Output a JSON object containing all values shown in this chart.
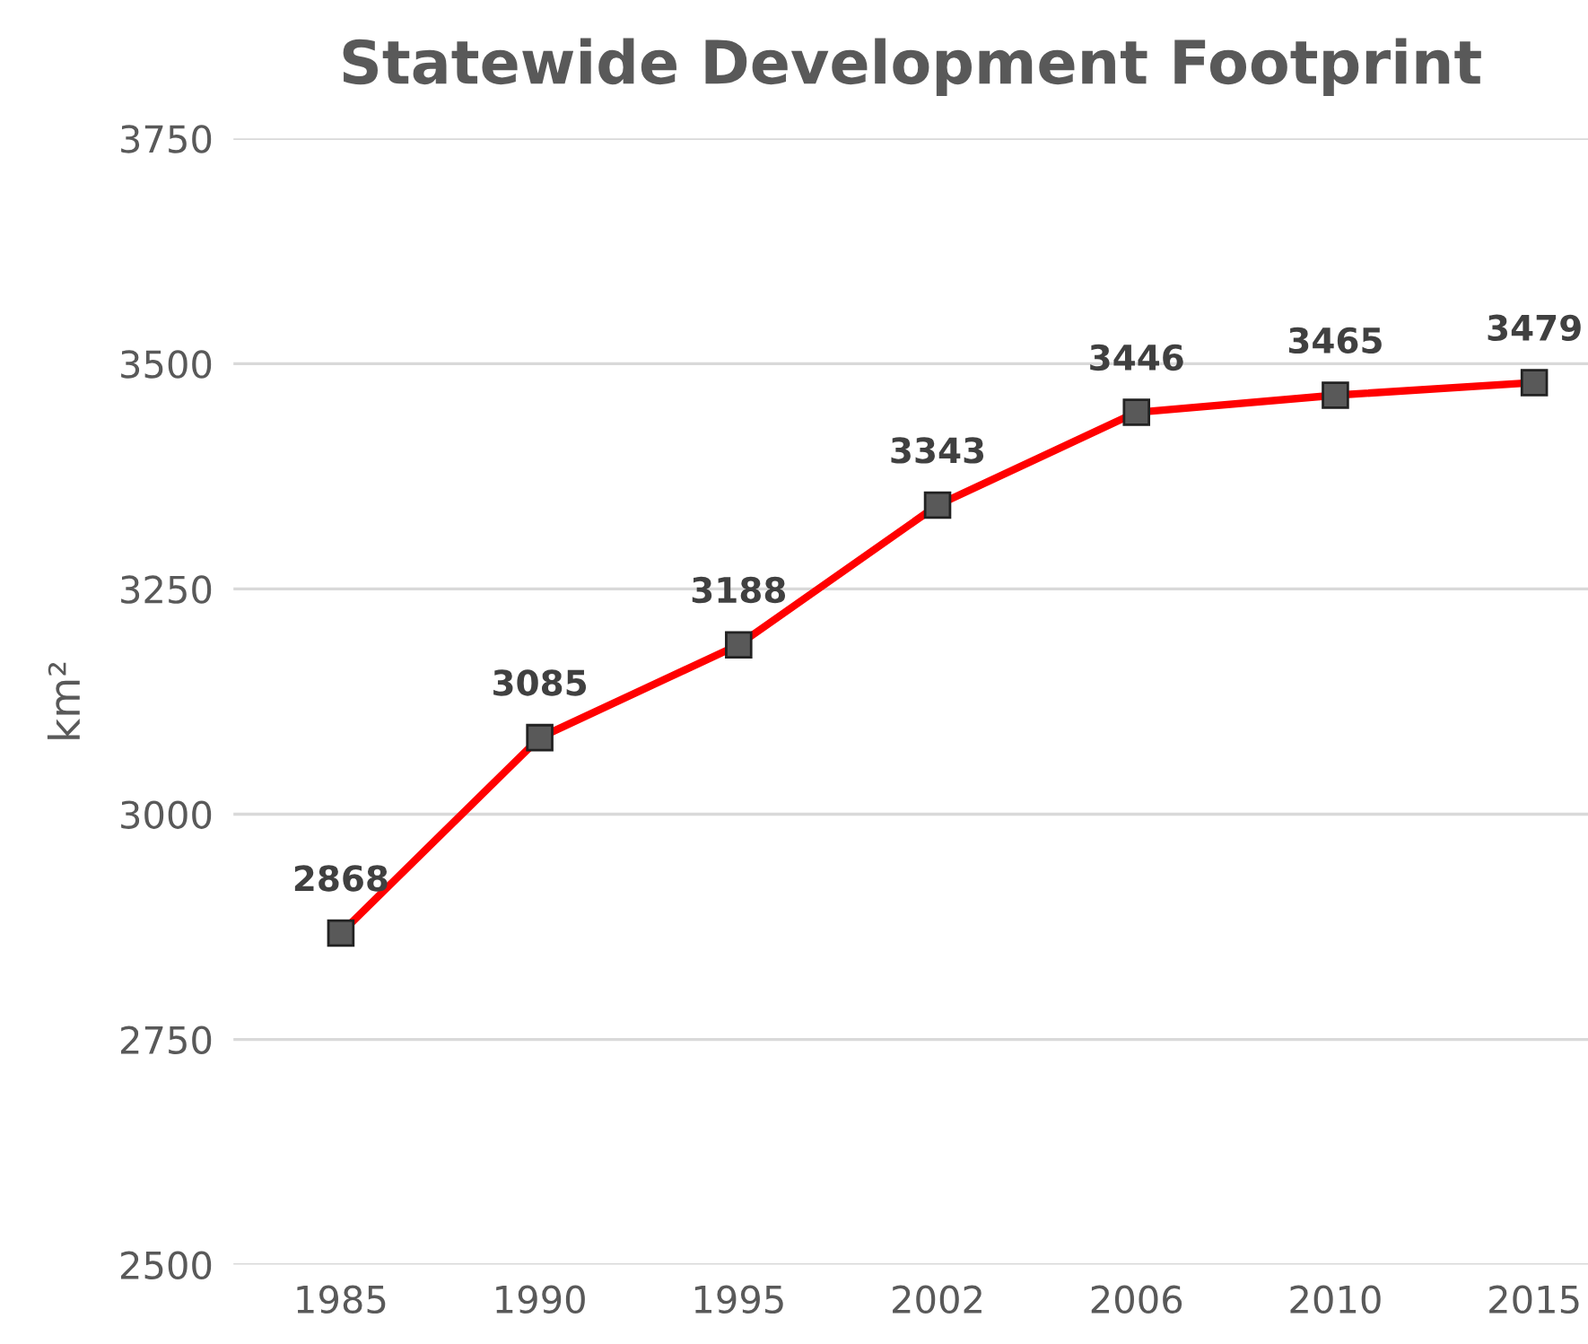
{
  "chart_data": {
    "type": "line",
    "title": "Statewide Development Footprint",
    "ylabel": "km²",
    "categories": [
      "1985",
      "1990",
      "1995",
      "2002",
      "2006",
      "2010",
      "2015"
    ],
    "series": [
      {
        "color": "#ff0000",
        "values": [
          2868,
          3085,
          3188,
          3343,
          3446,
          3465,
          3479
        ]
      }
    ],
    "ylim": [
      2500,
      3750
    ],
    "yticks": [
      2500,
      2750,
      3000,
      3250,
      3500,
      3750
    ],
    "grid": "y",
    "marker": "square",
    "line_style": "solid",
    "data_labels": true
  }
}
